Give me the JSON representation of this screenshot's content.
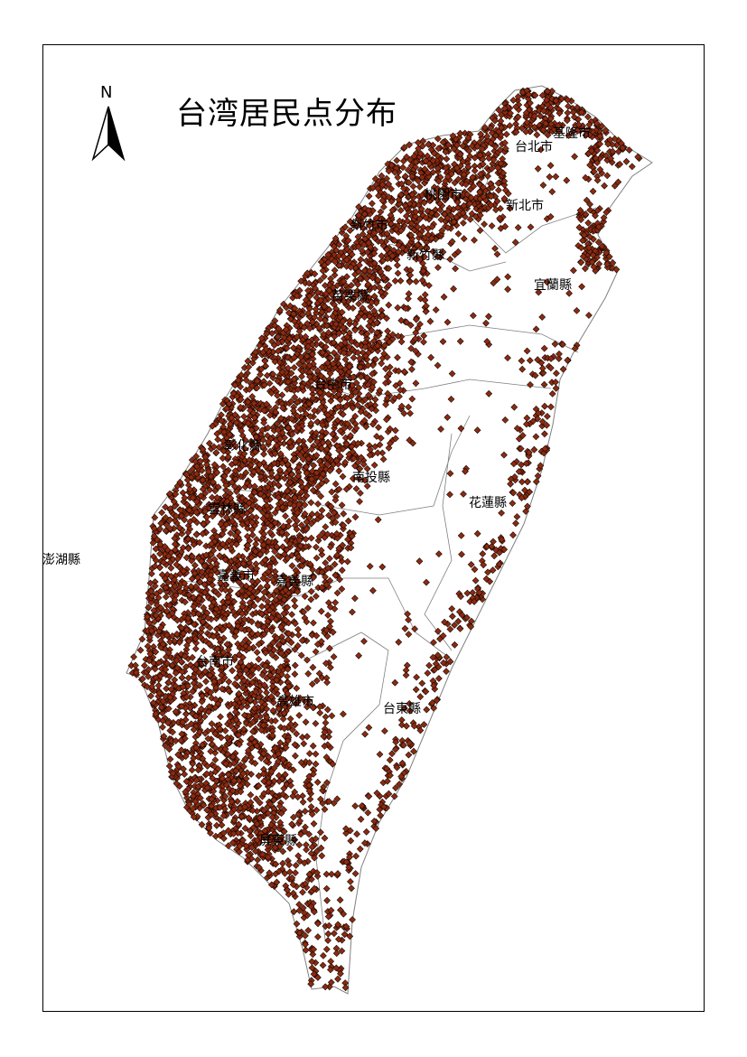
{
  "title": "台湾居民点分布",
  "north_arrow": {
    "label": "N",
    "icon": "north-arrow-icon"
  },
  "colors": {
    "point_fill": "#8B2A10",
    "point_stroke": "#000000",
    "boundary": "#808080",
    "background": "#ffffff"
  },
  "legend_symbol": "diamond",
  "regions": [
    {
      "name": "基隆市"
    },
    {
      "name": "台北市"
    },
    {
      "name": "新北市"
    },
    {
      "name": "桃園市"
    },
    {
      "name": "新竹市"
    },
    {
      "name": "新竹縣"
    },
    {
      "name": "苗栗縣"
    },
    {
      "name": "宜蘭縣"
    },
    {
      "name": "台中市"
    },
    {
      "name": "彰化縣"
    },
    {
      "name": "南投縣"
    },
    {
      "name": "花蓮縣"
    },
    {
      "name": "雲林縣"
    },
    {
      "name": "嘉義市"
    },
    {
      "name": "嘉義縣"
    },
    {
      "name": "澎湖縣"
    },
    {
      "name": "台南市"
    },
    {
      "name": "高雄市"
    },
    {
      "name": "台東縣"
    },
    {
      "name": "屏東縣"
    }
  ]
}
